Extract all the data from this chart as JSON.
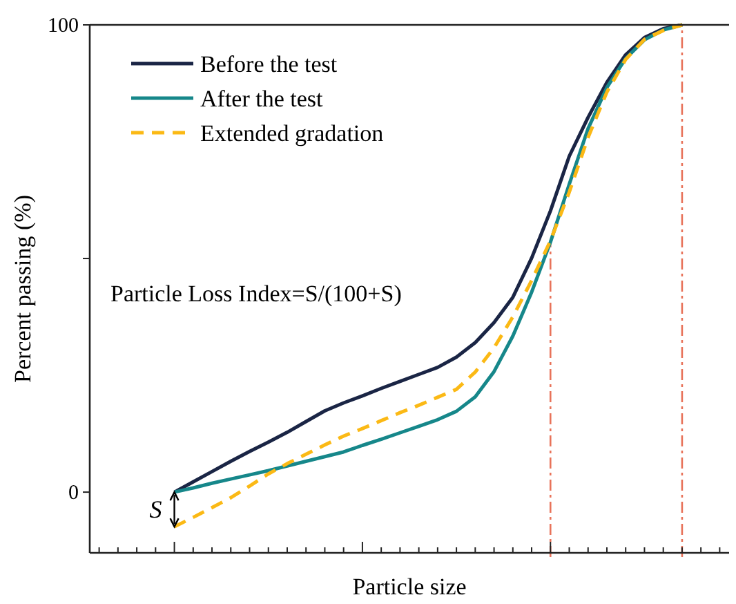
{
  "chart_data": {
    "type": "line",
    "xlabel": "Particle size",
    "ylabel": "Percent passing (%)",
    "categories": [
      null,
      null,
      null,
      null,
      null,
      null,
      null,
      null,
      null,
      null,
      null,
      null,
      null,
      null,
      null,
      null,
      null,
      null,
      null,
      null,
      null,
      null,
      null,
      null,
      null,
      null,
      null,
      null,
      null,
      null,
      null,
      null,
      null,
      null
    ],
    "ylim": [
      -13,
      100
    ],
    "yticks": [
      0,
      {
        "value": 50,
        "label": null
      },
      100
    ],
    "grid": false,
    "legend": "top left",
    "tick_labels": "y",
    "series": [
      {
        "name": "Before the test",
        "color": "#1a2545",
        "line_style": "solid",
        "values": [
          null,
          null,
          null,
          null,
          0,
          2.2,
          4.4,
          6.6,
          8.7,
          10.7,
          12.8,
          15.1,
          17.4,
          19.1,
          20.6,
          22.2,
          23.7,
          25.2,
          26.7,
          28.9,
          32.0,
          36.3,
          41.7,
          50.1,
          60.2,
          71.9,
          80.2,
          87.7,
          93.6,
          97.3,
          99.2,
          100,
          null,
          null
        ]
      },
      {
        "name": "After the test",
        "color": "#16878a",
        "line_style": "solid",
        "values": [
          null,
          null,
          null,
          null,
          0,
          0.9,
          1.9,
          2.8,
          3.7,
          4.6,
          5.6,
          6.6,
          7.6,
          8.6,
          10.0,
          11.3,
          12.7,
          14.1,
          15.5,
          17.3,
          20.4,
          25.8,
          33.4,
          42.8,
          53.5,
          65.9,
          77.8,
          86.6,
          92.8,
          96.8,
          98.9,
          100,
          null,
          null
        ]
      },
      {
        "name": "Extended gradation",
        "color": "#fbb915",
        "line_style": "dashed",
        "values": [
          null,
          null,
          null,
          null,
          -7.4,
          -5.4,
          -3.3,
          -1.2,
          1.3,
          3.9,
          6.1,
          8.1,
          10.1,
          12.0,
          13.6,
          15.3,
          17.0,
          18.6,
          20.3,
          22.0,
          25.7,
          30.9,
          37.5,
          45.3,
          53.8,
          64.2,
          75.9,
          85.6,
          92.6,
          96.9,
          98.8,
          100,
          null,
          null
        ]
      }
    ],
    "annotations": [
      "Particle Loss Index=S/(100+S)",
      "S"
    ]
  }
}
